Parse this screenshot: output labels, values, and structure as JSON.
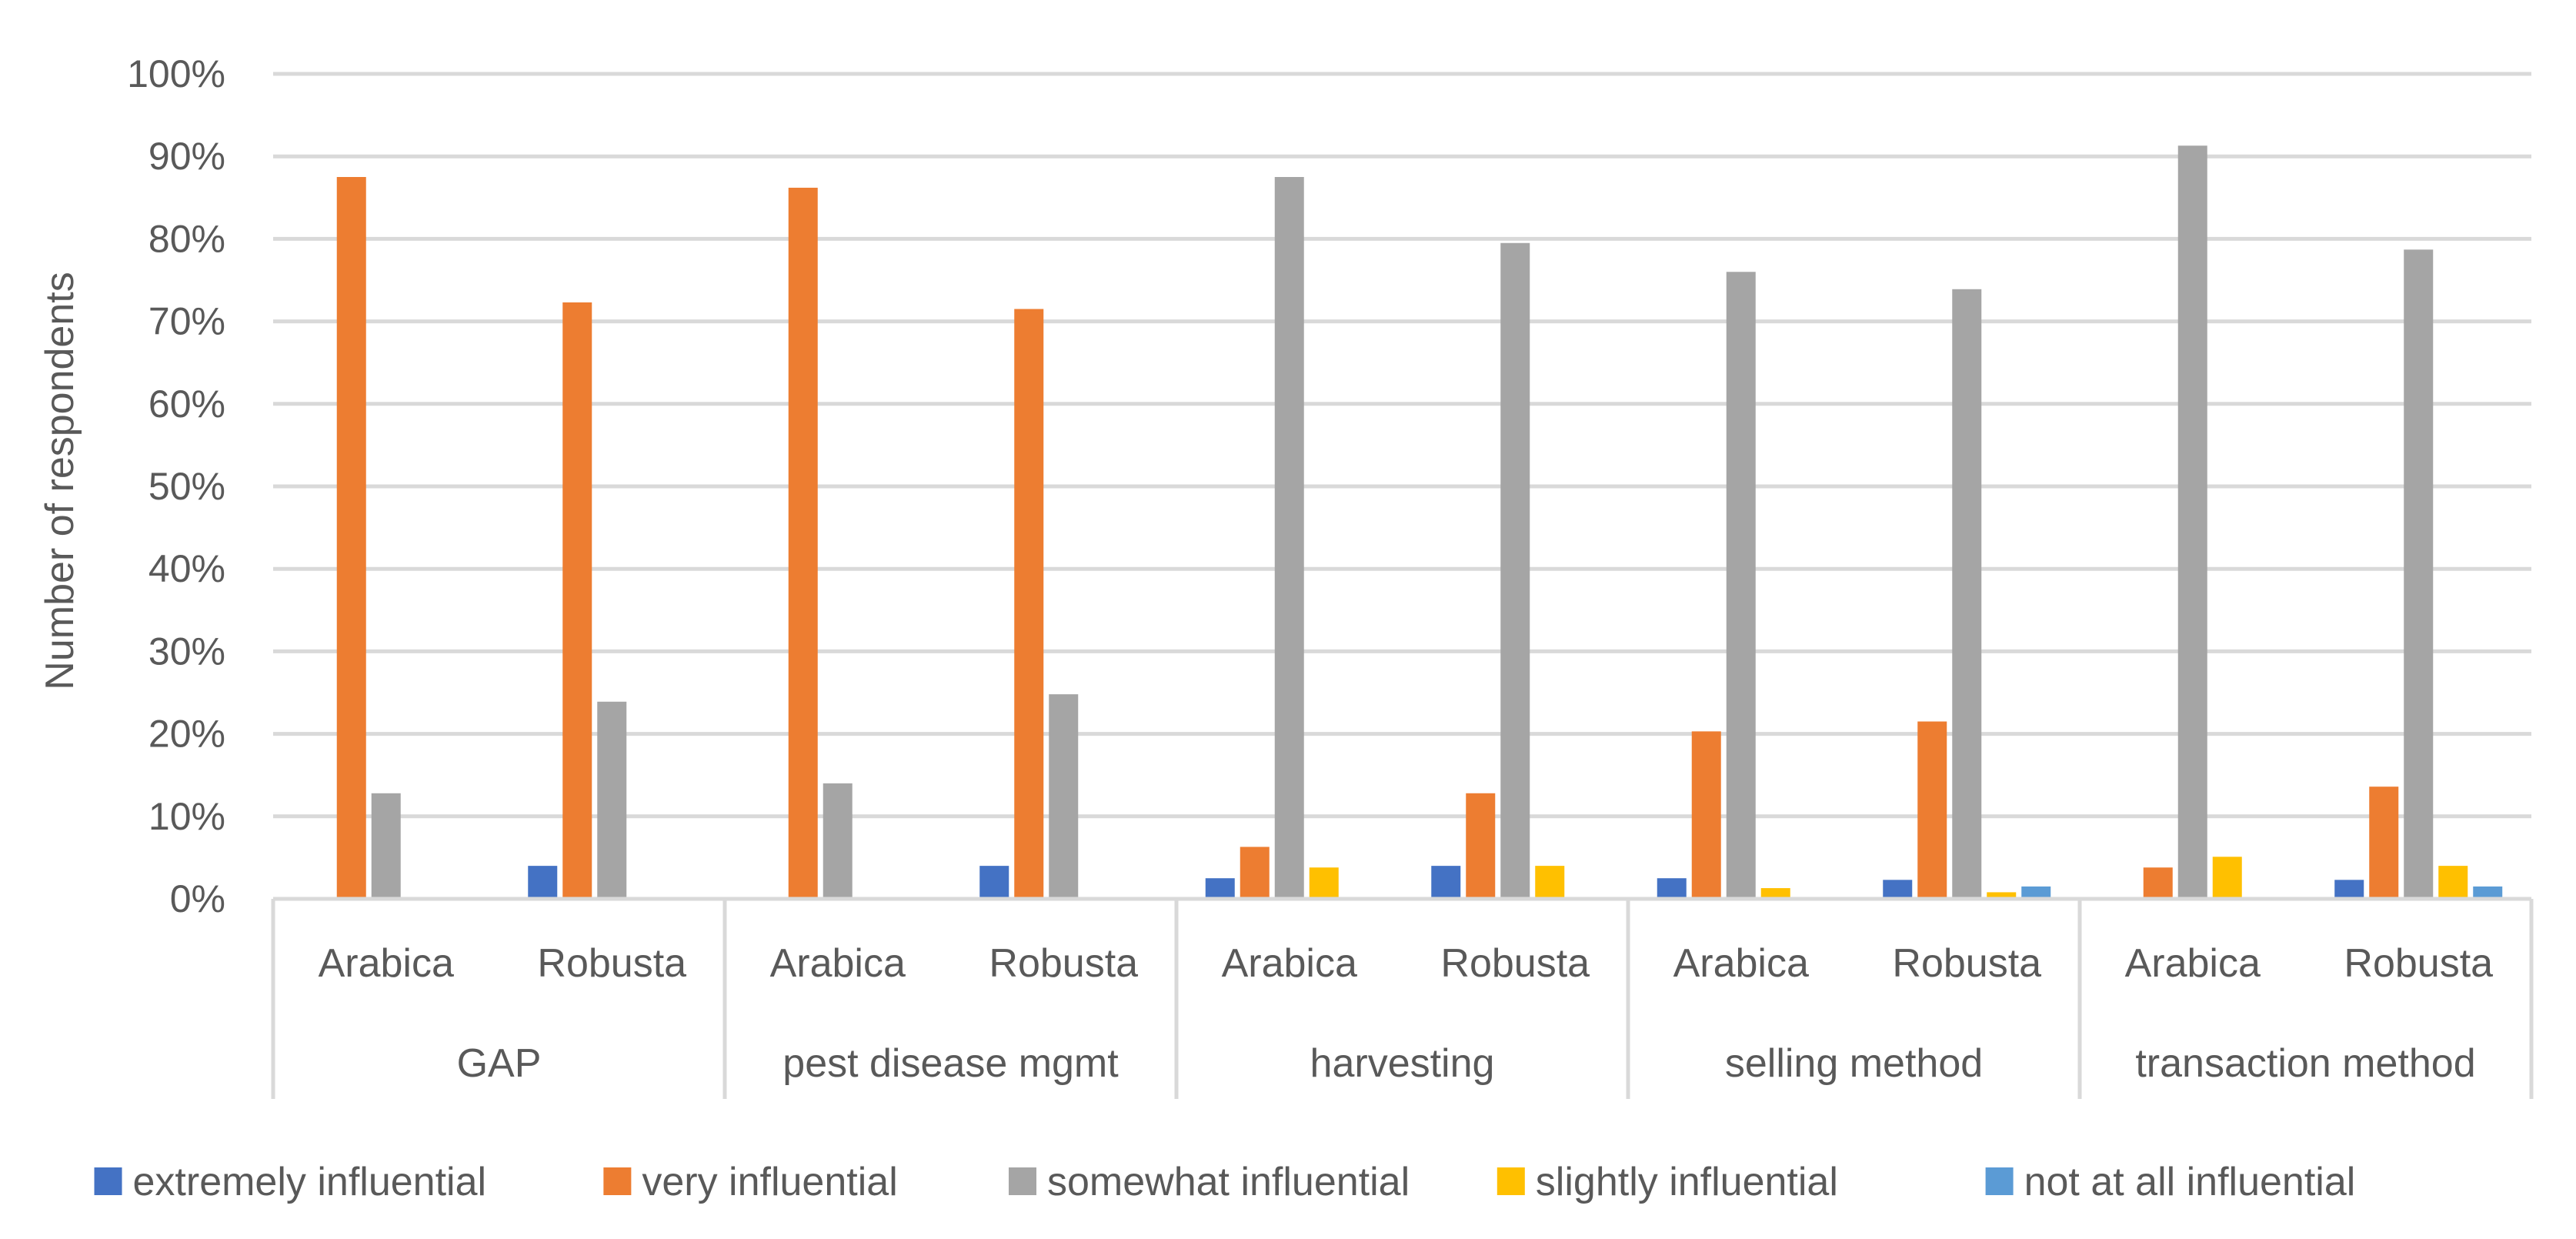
{
  "chart_data": {
    "type": "bar",
    "ylabel": "Number of respondents",
    "ylim": [
      0,
      100
    ],
    "y_ticks": [
      "0%",
      "10%",
      "20%",
      "30%",
      "40%",
      "50%",
      "60%",
      "70%",
      "80%",
      "90%",
      "100%"
    ],
    "grid": true,
    "legend_position": "bottom",
    "groups": [
      {
        "label": "GAP",
        "categories": [
          "Arabica",
          "Robusta"
        ]
      },
      {
        "label": "pest disease mgmt",
        "categories": [
          "Arabica",
          "Robusta"
        ]
      },
      {
        "label": "harvesting",
        "categories": [
          "Arabica",
          "Robusta"
        ]
      },
      {
        "label": "selling method",
        "categories": [
          "Arabica",
          "Robusta"
        ]
      },
      {
        "label": "transaction method",
        "categories": [
          "Arabica",
          "Robusta"
        ]
      }
    ],
    "series": [
      {
        "name": "extremely influential",
        "color": "#4472C4",
        "values": [
          0,
          4,
          0,
          4,
          2.5,
          4,
          2.5,
          2.3,
          0,
          2.3
        ]
      },
      {
        "name": "very influential",
        "color": "#ED7D31",
        "values": [
          87.5,
          72.3,
          86.2,
          71.5,
          6.3,
          12.8,
          20.3,
          21.5,
          3.8,
          13.6
        ]
      },
      {
        "name": "somewhat influential",
        "color": "#A5A5A5",
        "values": [
          12.8,
          23.9,
          14,
          24.8,
          87.5,
          79.5,
          76,
          73.9,
          91.3,
          78.7
        ]
      },
      {
        "name": "slightly influential",
        "color": "#FFC000",
        "values": [
          0,
          0,
          0,
          0,
          3.8,
          4,
          1.3,
          0.8,
          5.1,
          4
        ]
      },
      {
        "name": "not at all influential",
        "color": "#5B9BD5",
        "values": [
          0,
          0,
          0,
          0,
          0,
          0,
          0,
          1.5,
          0,
          1.5
        ]
      }
    ]
  }
}
